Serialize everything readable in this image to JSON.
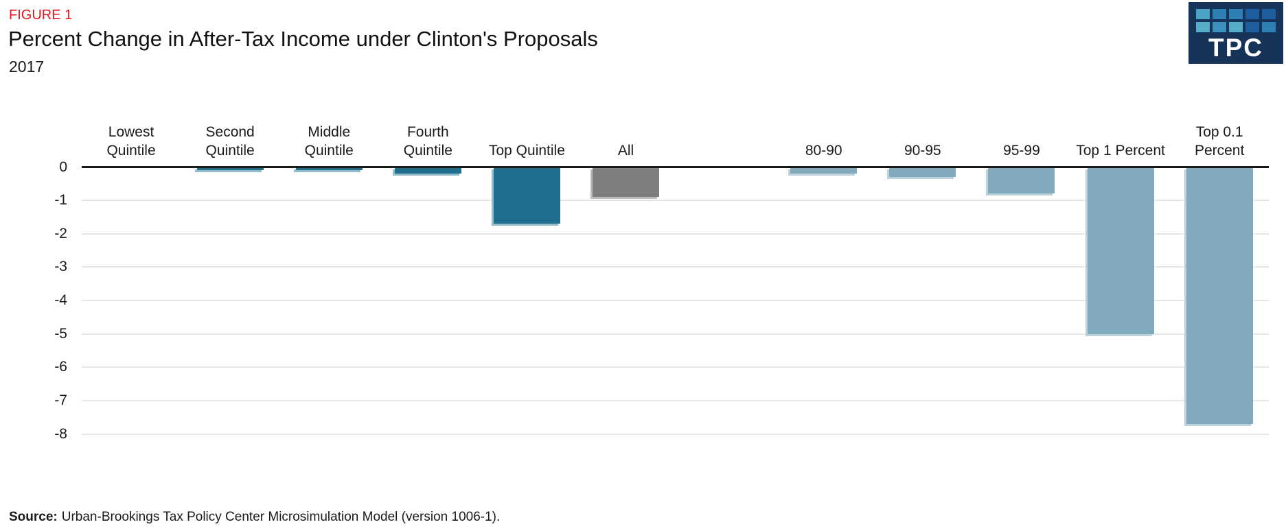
{
  "chart_data": {
    "type": "bar",
    "figure_label": "FIGURE 1",
    "title": "Percent Change in After-Tax Income under Clinton's Proposals",
    "subtitle": "2017",
    "categories": [
      "Lowest Quintile",
      "Second Quintile",
      "Middle Quintile",
      "Fourth Quintile",
      "Top Quintile",
      "All",
      "",
      "80-90",
      "90-95",
      "95-99",
      "Top 1 Percent",
      "Top 0.1 Percent"
    ],
    "category_lines": [
      [
        "Lowest",
        "Quintile"
      ],
      [
        "Second",
        "Quintile"
      ],
      [
        "Middle",
        "Quintile"
      ],
      [
        "Fourth",
        "Quintile"
      ],
      [
        "Top Quintile"
      ],
      [
        "All"
      ],
      [],
      [
        "80-90"
      ],
      [
        "90-95"
      ],
      [
        "95-99"
      ],
      [
        "Top 1 Percent"
      ],
      [
        "Top 0.1",
        "Percent"
      ]
    ],
    "values": [
      0,
      -0.1,
      -0.1,
      -0.2,
      -1.7,
      -0.9,
      null,
      -0.2,
      -0.3,
      -0.8,
      -5.0,
      -7.7
    ],
    "bar_colors": [
      "#206E8E",
      "#206E8E",
      "#206E8E",
      "#206E8E",
      "#206E8E",
      "#7F7F7F",
      null,
      "#81ABBC",
      "#81ABBC",
      "#81ABBC",
      "#81ABBC",
      "#81ABBC"
    ],
    "series_colors": {
      "quintiles": "#206E8E",
      "all": "#7F7F7F",
      "top_percentiles": "#81ABBC"
    },
    "shadow_colors": {
      "#206E8E": "#93BCCB",
      "#7F7F7F": "#BDBDBD",
      "#81ABBC": "#BDD1DB"
    },
    "yticks": [
      0,
      -1,
      -2,
      -3,
      -4,
      -5,
      -6,
      -7,
      -8
    ],
    "ylim": [
      -8,
      0
    ],
    "grid": true,
    "legend_position": "none",
    "zero_line_color": "#1A1A1A",
    "gridline_color": "#E6E6E6",
    "figure_label_color": "#E8131B",
    "xlabel": "",
    "ylabel": ""
  },
  "logo": {
    "text": "TPC",
    "bg_color": "#16345A",
    "square_colors": [
      [
        "#4BA2C2",
        "#2E7FB4",
        "#2E7FB4",
        "#1F5E9E",
        "#1F5E9E"
      ],
      [
        "#57ACC8",
        "#3D92BD",
        "#57ACC8",
        "#1F5E9E",
        "#2E7FB4"
      ]
    ]
  },
  "source": {
    "label": "Source:",
    "text": "Urban-Brookings Tax Policy Center Microsimulation Model (version 1006-1)."
  }
}
